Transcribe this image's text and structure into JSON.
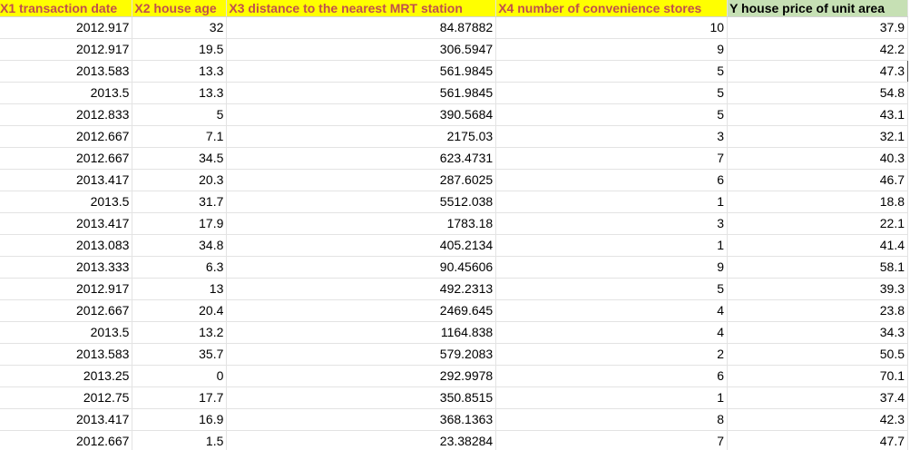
{
  "columns": [
    "X1 transaction date",
    "X2 house age",
    "X3 distance to the nearest MRT station",
    "X4 number of convenience stores",
    "Y house price of unit area"
  ],
  "colors": {
    "header_fill_x": "#ffff00",
    "header_fill_y": "#c6e0b4",
    "header_text_x": "#c0504d",
    "gridline": "#e3e3e3"
  },
  "rows": [
    [
      "2012.917",
      "32",
      "84.87882",
      "10",
      "37.9"
    ],
    [
      "2012.917",
      "19.5",
      "306.5947",
      "9",
      "42.2"
    ],
    [
      "2013.583",
      "13.3",
      "561.9845",
      "5",
      "47.3"
    ],
    [
      "2013.5",
      "13.3",
      "561.9845",
      "5",
      "54.8"
    ],
    [
      "2012.833",
      "5",
      "390.5684",
      "5",
      "43.1"
    ],
    [
      "2012.667",
      "7.1",
      "2175.03",
      "3",
      "32.1"
    ],
    [
      "2012.667",
      "34.5",
      "623.4731",
      "7",
      "40.3"
    ],
    [
      "2013.417",
      "20.3",
      "287.6025",
      "6",
      "46.7"
    ],
    [
      "2013.5",
      "31.7",
      "5512.038",
      "1",
      "18.8"
    ],
    [
      "2013.417",
      "17.9",
      "1783.18",
      "3",
      "22.1"
    ],
    [
      "2013.083",
      "34.8",
      "405.2134",
      "1",
      "41.4"
    ],
    [
      "2013.333",
      "6.3",
      "90.45606",
      "9",
      "58.1"
    ],
    [
      "2012.917",
      "13",
      "492.2313",
      "5",
      "39.3"
    ],
    [
      "2012.667",
      "20.4",
      "2469.645",
      "4",
      "23.8"
    ],
    [
      "2013.5",
      "13.2",
      "1164.838",
      "4",
      "34.3"
    ],
    [
      "2013.583",
      "35.7",
      "579.2083",
      "2",
      "50.5"
    ],
    [
      "2013.25",
      "0",
      "292.9978",
      "6",
      "70.1"
    ],
    [
      "2012.75",
      "17.7",
      "350.8515",
      "1",
      "37.4"
    ],
    [
      "2013.417",
      "16.9",
      "368.1363",
      "8",
      "42.3"
    ],
    [
      "2012.667",
      "1.5",
      "23.38284",
      "7",
      "47.7"
    ]
  ]
}
